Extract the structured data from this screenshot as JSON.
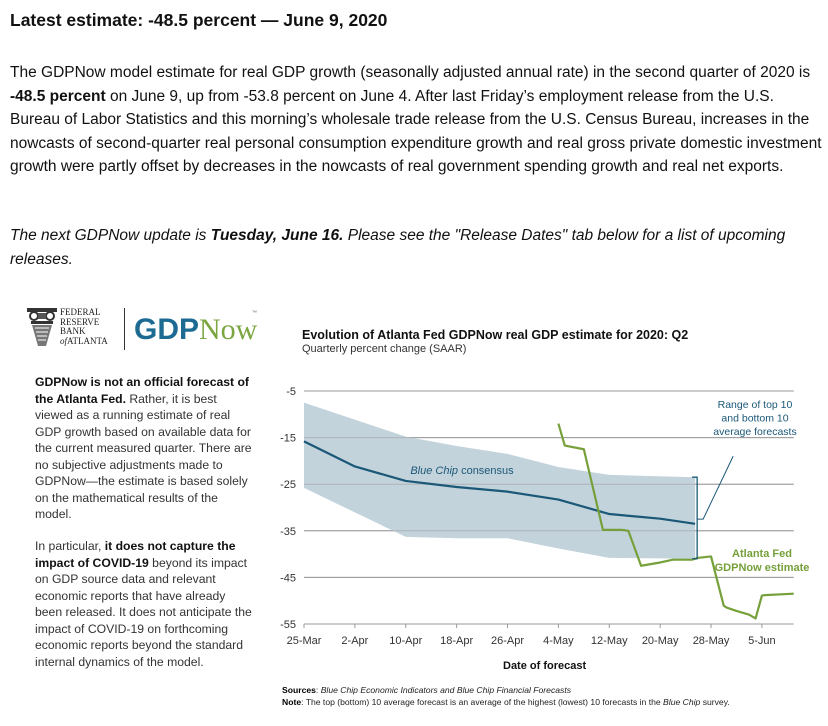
{
  "headline": "Latest estimate: -48.5 percent — June 9, 2020",
  "paragraph1": {
    "pre": "The GDPNow model estimate for real GDP growth (seasonally adjusted annual rate) in the second quarter of 2020 is ",
    "bold": "-48.5 percent",
    "post": " on June 9, up from -53.8 percent on June 4. After last Friday’s employment release from the U.S. Bureau of Labor Statistics and this morning’s wholesale trade release from the U.S. Census Bureau, increases in the nowcasts of second-quarter real personal consumption expenditure growth and real gross private domestic investment growth were partly offset by decreases in the nowcasts of real government spending growth and real net exports."
  },
  "paragraph2": {
    "pre": "The next GDPNow update is ",
    "bold": "Tuesday, June 16.",
    "post": " Please see the \"Release Dates\" tab below for a list of upcoming releases."
  },
  "logo": {
    "bank_lines": [
      "FEDERAL",
      "RESERVE",
      "BANK"
    ],
    "bank_of": "of",
    "bank_city": "ATLANTA",
    "product_bold": "GDP",
    "product_light": "Now",
    "trademark": "™"
  },
  "sidebar": {
    "block1": {
      "bold": "GDPNow is not an official forecast of the Atlanta Fed.",
      "text": " Rather, it is best viewed as a running estimate of real GDP growth based on available data for the current measured quarter. There are no subjective adjustments made to GDPNow—the estimate is based solely on the mathematical results of the model."
    },
    "block2": {
      "pre": "In particular, ",
      "bold": "it does not capture the impact of COVID-19",
      "post": " beyond its impact on GDP source data and relevant economic reports that have already been released. It does not anticipate the impact of COVID-19 on forthcoming economic reports beyond the standard internal dynamics of the model."
    }
  },
  "notes": {
    "sources_label": "Sources",
    "sources_text": "Blue Chip Economic Indicators and Blue Chip Financial Forecasts",
    "note_label": "Note",
    "note_pre": "The top (bottom) 10 average forecast is an average of the highest (lowest) 10 forecasts in the ",
    "note_italic": "Blue Chip",
    "note_post": " survey."
  },
  "colors": {
    "consensus": "#1b5878",
    "range_fill": "#c3d3dc",
    "gdpnow": "#76a03a",
    "grid": "#999999"
  },
  "chart_data": {
    "type": "line",
    "title": "Evolution of Atlanta Fed GDPNow real GDP estimate for 2020: Q2",
    "subtitle": "Quarterly percent change (SAAR)",
    "xlabel": "Date of forecast",
    "ylabel": "",
    "ylim": [
      -55,
      -5
    ],
    "yticks": [
      -5,
      -15,
      -25,
      -35,
      -45,
      -55
    ],
    "x_tick_labels": [
      "25-Mar",
      "2-Apr",
      "10-Apr",
      "18-Apr",
      "26-Apr",
      "4-May",
      "12-May",
      "20-May",
      "28-May",
      "5-Jun"
    ],
    "x_tick_days": [
      0,
      8,
      16,
      24,
      32,
      40,
      48,
      56,
      64,
      72
    ],
    "xlim_days": [
      0,
      77
    ],
    "grid": true,
    "annotations": [
      {
        "text": "Blue Chip consensus",
        "style": "italic"
      },
      {
        "text": [
          "Range of top 10",
          "and bottom 10",
          "average forecasts"
        ]
      },
      {
        "text": [
          "Atlanta Fed",
          "GDPNow estimate"
        ],
        "style": "bold"
      }
    ],
    "series": [
      {
        "name": "Blue Chip consensus",
        "x_days": [
          0,
          8,
          16,
          24,
          32,
          40,
          48,
          56,
          61.5
        ],
        "values": [
          -15.8,
          -21.2,
          -24.3,
          -25.6,
          -26.6,
          -28.3,
          -31.4,
          -32.4,
          -33.5
        ]
      },
      {
        "name": "Range top 10 average",
        "x_days": [
          0,
          16,
          24,
          32,
          40,
          48,
          61.5
        ],
        "values": [
          -7.5,
          -14.8,
          -16.8,
          -18.5,
          -21.3,
          -23.0,
          -23.5
        ]
      },
      {
        "name": "Range bottom 10 average",
        "x_days": [
          0,
          16,
          24,
          32,
          40,
          48,
          61.5
        ],
        "values": [
          -25.8,
          -36.3,
          -36.6,
          -36.6,
          -38.8,
          -40.8,
          -41.0
        ]
      },
      {
        "name": "Atlanta Fed GDPNow estimate",
        "x_days": [
          40,
          41,
          44,
          47,
          50,
          51,
          53,
          56,
          58,
          61,
          62,
          64,
          66,
          66.5,
          68,
          70,
          71,
          72,
          72.5,
          77
        ],
        "values": [
          -12.0,
          -16.7,
          -17.5,
          -34.8,
          -34.8,
          -35.0,
          -42.5,
          -41.8,
          -41.2,
          -41.2,
          -40.8,
          -40.5,
          -51.1,
          -51.5,
          -52.2,
          -53.0,
          -53.8,
          -48.9,
          -48.8,
          -48.5
        ]
      }
    ]
  }
}
